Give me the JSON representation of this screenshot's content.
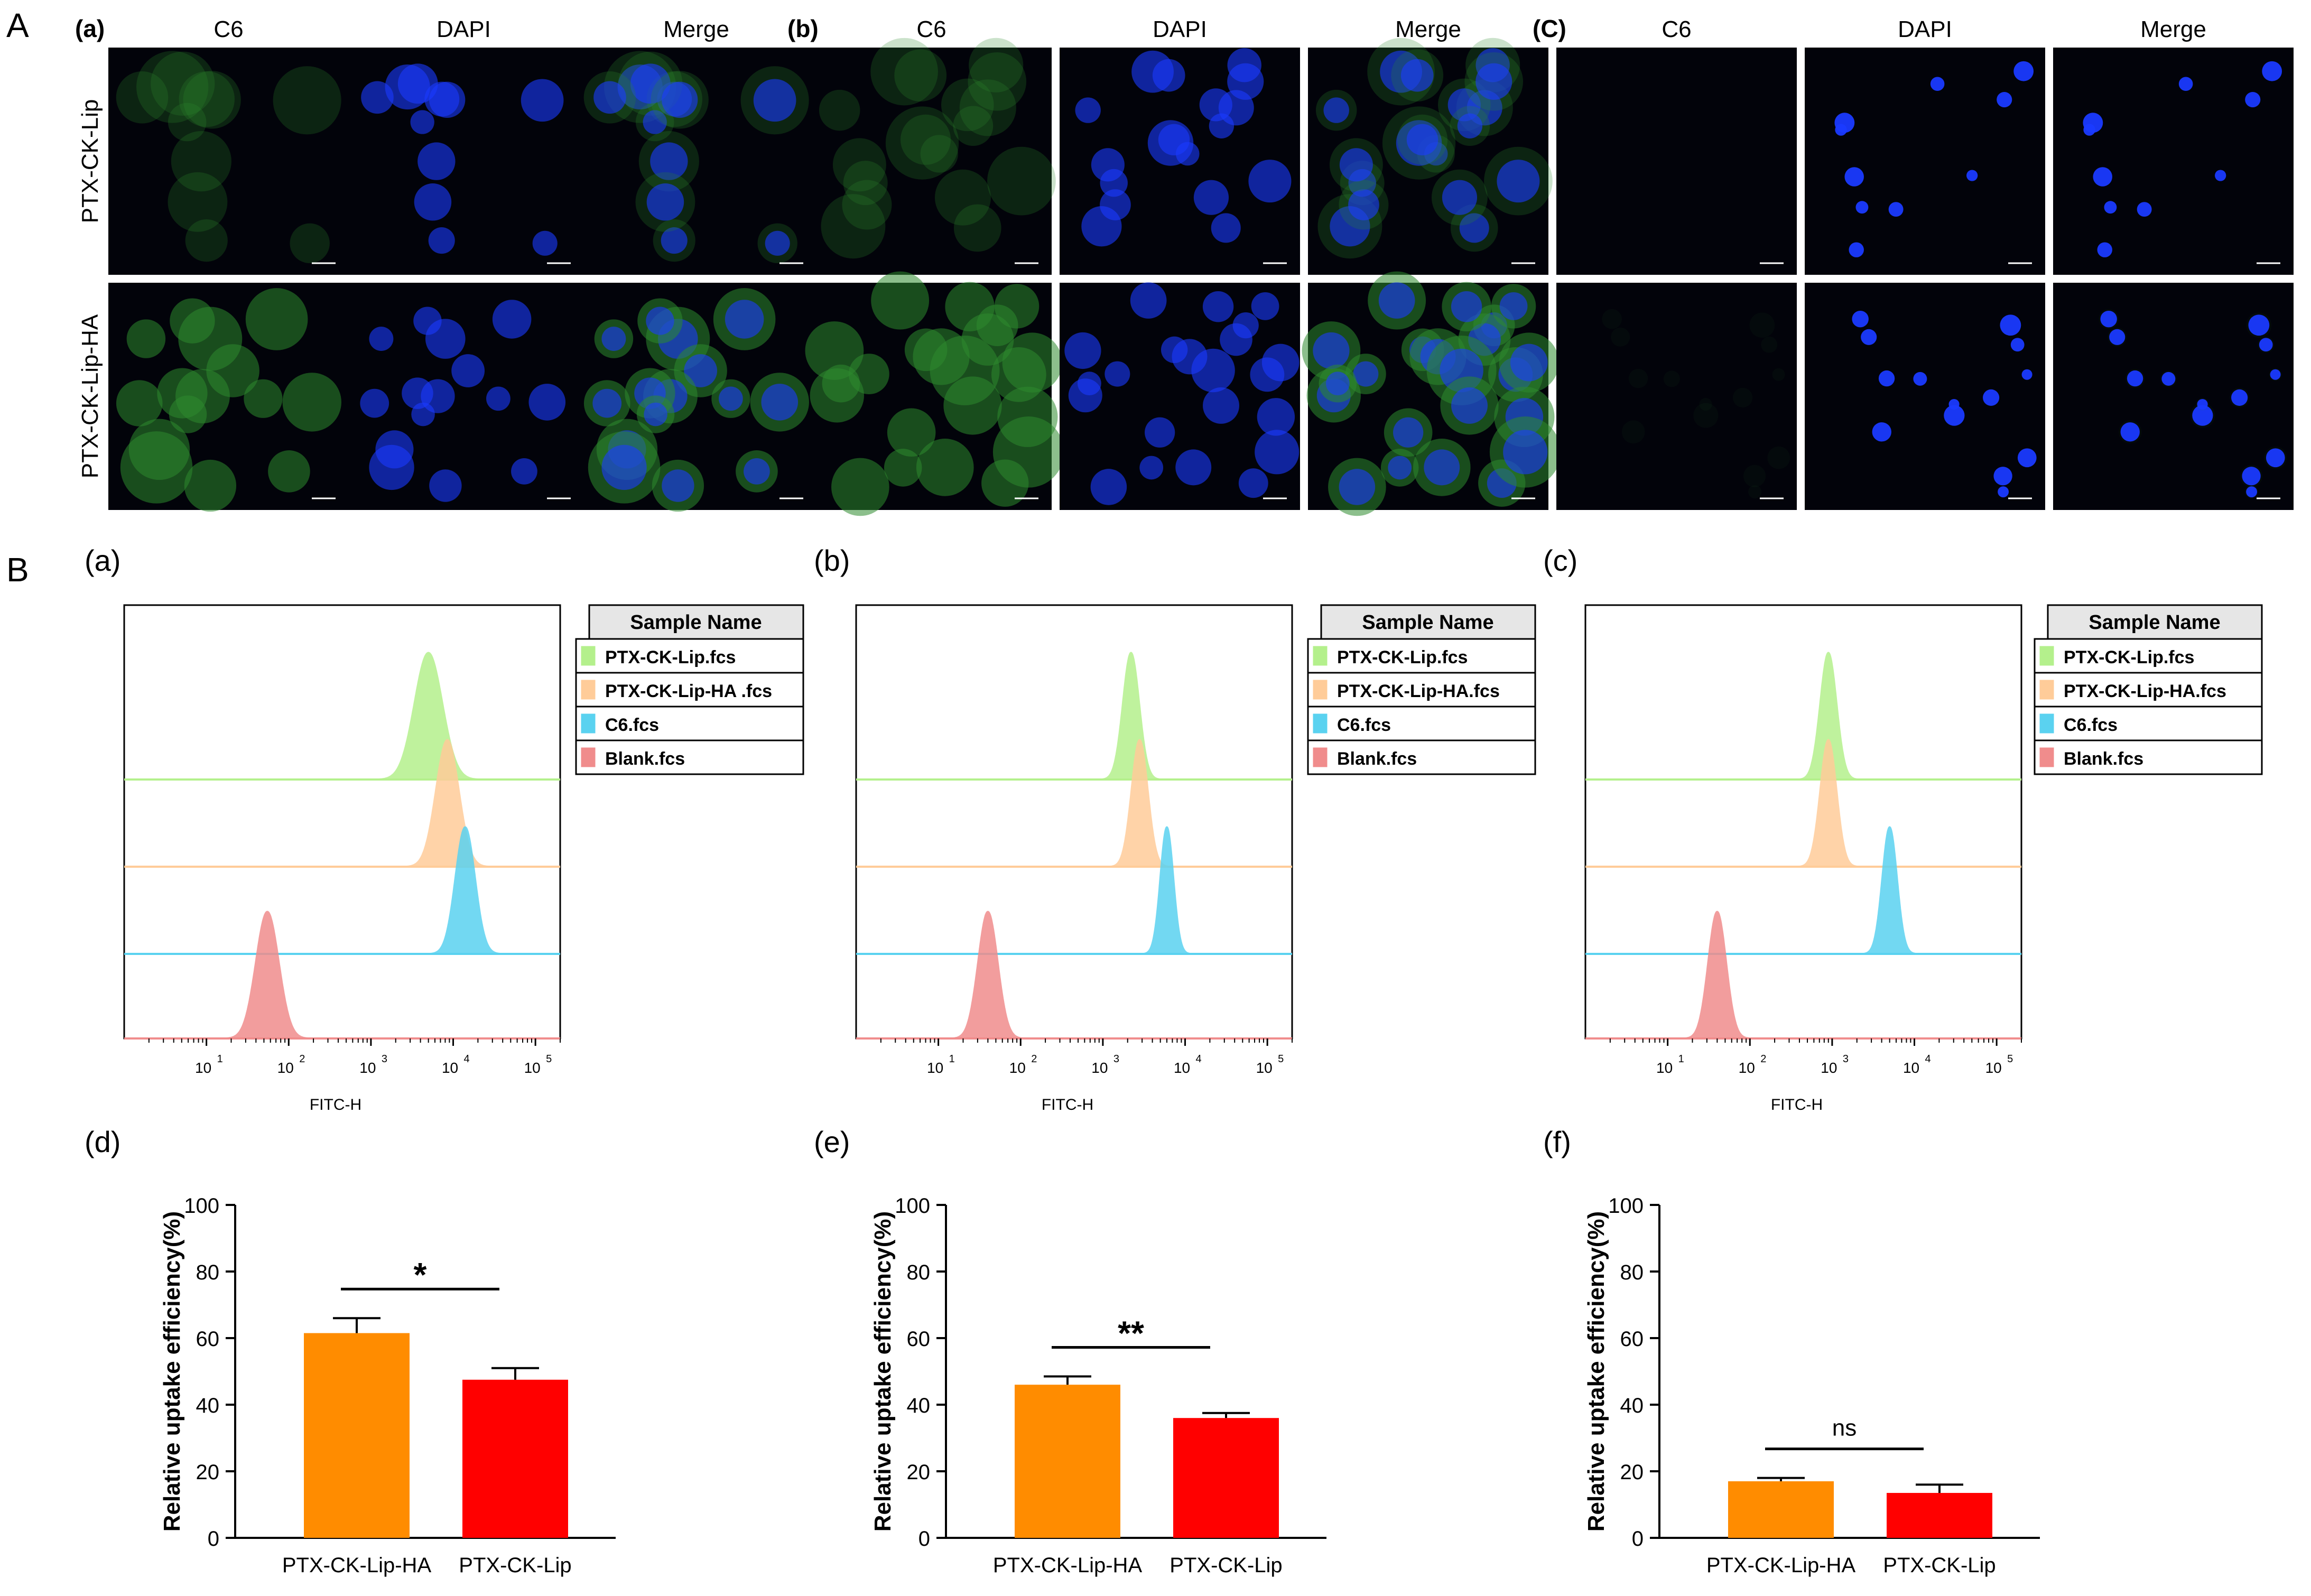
{
  "panel_A": {
    "label": "A",
    "groups": [
      {
        "label": "(a)",
        "columns": [
          "C6",
          "DAPI",
          "Merge"
        ]
      },
      {
        "label": "(b)",
        "columns": [
          "C6",
          "DAPI",
          "Merge"
        ]
      },
      {
        "label": "(C)",
        "columns": [
          "C6",
          "DAPI",
          "Merge"
        ]
      }
    ],
    "row_labels": [
      "PTX-CK-Lip",
      "PTX-CK-Lip-HA"
    ],
    "colors": {
      "c6": "#2e8b2e",
      "dapi": "#1a3aff",
      "background": "#02030a"
    }
  },
  "panel_B": {
    "label": "B"
  },
  "chart_data": [
    {
      "type": "histogram",
      "panel": "(a)",
      "xlabel": "FITC-H",
      "x_scale": "log",
      "xlim": [
        1,
        200000
      ],
      "xticks": [
        "10",
        "10",
        "10",
        "10",
        "10"
      ],
      "xtick_exponents": [
        "1",
        "2",
        "3",
        "4",
        "5"
      ],
      "legend_title": "Sample Name",
      "series": [
        {
          "name": "PTX-CK-Lip.fcs",
          "peak": 5000,
          "spread": 0.17,
          "color": "#b4f08c"
        },
        {
          "name": "PTX-CK-Lip-HA .fcs",
          "peak": 8500,
          "spread": 0.14,
          "color": "#ffcc99"
        },
        {
          "name": "C6.fcs",
          "peak": 14000,
          "spread": 0.12,
          "color": "#5ad2f0"
        },
        {
          "name": "Blank.fcs",
          "peak": 55,
          "spread": 0.14,
          "color": "#f08c8c"
        }
      ]
    },
    {
      "type": "histogram",
      "panel": "(b)",
      "xlabel": "FITC-H",
      "x_scale": "log",
      "xlim": [
        1,
        200000
      ],
      "xticks": [
        "10",
        "10",
        "10",
        "10",
        "10"
      ],
      "xtick_exponents": [
        "1",
        "2",
        "3",
        "4",
        "5"
      ],
      "legend_title": "Sample Name",
      "series": [
        {
          "name": "PTX-CK-Lip.fcs",
          "peak": 2200,
          "spread": 0.1,
          "color": "#b4f08c"
        },
        {
          "name": "PTX-CK-Lip-HA.fcs",
          "peak": 2800,
          "spread": 0.1,
          "color": "#ffcc99"
        },
        {
          "name": "C6.fcs",
          "peak": 6000,
          "spread": 0.08,
          "color": "#5ad2f0"
        },
        {
          "name": "Blank.fcs",
          "peak": 40,
          "spread": 0.12,
          "color": "#f08c8c"
        }
      ]
    },
    {
      "type": "histogram",
      "panel": "(c)",
      "xlabel": "FITC-H",
      "x_scale": "log",
      "xlim": [
        1,
        200000
      ],
      "xticks": [
        "10",
        "10",
        "10",
        "10",
        "10"
      ],
      "xtick_exponents": [
        "1",
        "2",
        "3",
        "4",
        "5"
      ],
      "legend_title": "Sample Name",
      "series": [
        {
          "name": "PTX-CK-Lip.fcs",
          "peak": 900,
          "spread": 0.1,
          "color": "#b4f08c"
        },
        {
          "name": "PTX-CK-Lip-HA.fcs",
          "peak": 900,
          "spread": 0.1,
          "color": "#ffcc99"
        },
        {
          "name": "C6.fcs",
          "peak": 5000,
          "spread": 0.09,
          "color": "#5ad2f0"
        },
        {
          "name": "Blank.fcs",
          "peak": 40,
          "spread": 0.11,
          "color": "#f08c8c"
        }
      ]
    },
    {
      "type": "bar",
      "panel": "(d)",
      "ylabel": "Relative uptake efficiency(%)",
      "ylim": [
        0,
        100
      ],
      "yticks": [
        0,
        20,
        40,
        60,
        80,
        100
      ],
      "categories": [
        "PTX-CK-Lip-HA",
        "PTX-CK-Lip"
      ],
      "values": [
        61.5,
        47.5
      ],
      "errors": [
        4.5,
        3.5
      ],
      "colors": [
        "#ff8c00",
        "#ff0000"
      ],
      "significance": "*"
    },
    {
      "type": "bar",
      "panel": "(e)",
      "ylabel": "Relative uptake efficiency(%)",
      "ylim": [
        0,
        100
      ],
      "yticks": [
        0,
        20,
        40,
        60,
        80,
        100
      ],
      "categories": [
        "PTX-CK-Lip-HA",
        "PTX-CK-Lip"
      ],
      "values": [
        46,
        36
      ],
      "errors": [
        2.5,
        1.5
      ],
      "colors": [
        "#ff8c00",
        "#ff0000"
      ],
      "significance": "**"
    },
    {
      "type": "bar",
      "panel": "(f)",
      "ylabel": "Relative uptake efficiency(%)",
      "ylim": [
        0,
        100
      ],
      "yticks": [
        0,
        20,
        40,
        60,
        80,
        100
      ],
      "categories": [
        "PTX-CK-Lip-HA",
        "PTX-CK-Lip"
      ],
      "values": [
        17,
        13.5
      ],
      "errors": [
        1.0,
        2.5
      ],
      "colors": [
        "#ff8c00",
        "#ff0000"
      ],
      "significance": "ns"
    }
  ]
}
